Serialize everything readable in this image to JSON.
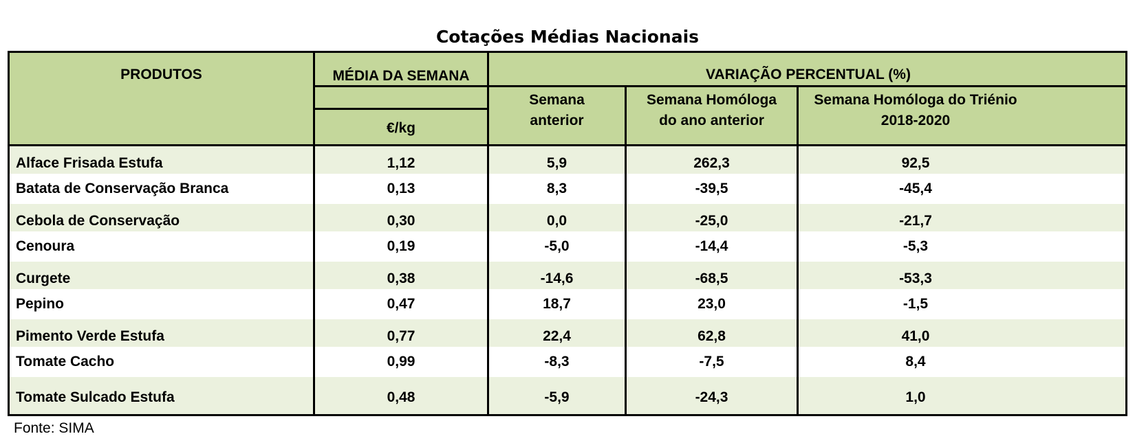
{
  "title": "Cotações Médias Nacionais",
  "header": {
    "produtos": "PRODUTOS",
    "media": "MÉDIA DA SEMANA",
    "unit": "€/kg",
    "variacao": "VARIAÇÃO PERCENTUAL (%)",
    "col1_line1": "Semana",
    "col1_line2": "anterior",
    "col2_line1": "Semana Homóloga",
    "col2_line2": "do ano anterior",
    "col3_line1": "Semana Homóloga do Triénio",
    "col3_line2": "2018-2020"
  },
  "rows": [
    {
      "product": "Alface Frisada Estufa",
      "media": "1,12",
      "anterior": "5,9",
      "homologa": "262,3",
      "trienio": "92,5"
    },
    {
      "product": "Batata de Conservação Branca",
      "media": "0,13",
      "anterior": "8,3",
      "homologa": "-39,5",
      "trienio": "-45,4"
    },
    {
      "product": "Cebola de Conservação",
      "media": "0,30",
      "anterior": "0,0",
      "homologa": "-25,0",
      "trienio": "-21,7"
    },
    {
      "product": "Cenoura",
      "media": "0,19",
      "anterior": "-5,0",
      "homologa": "-14,4",
      "trienio": "-5,3"
    },
    {
      "product": "Curgete",
      "media": "0,38",
      "anterior": "-14,6",
      "homologa": "-68,5",
      "trienio": "-53,3"
    },
    {
      "product": "Pepino",
      "media": "0,47",
      "anterior": "18,7",
      "homologa": "23,0",
      "trienio": "-1,5"
    },
    {
      "product": "Pimento Verde Estufa",
      "media": "0,77",
      "anterior": "22,4",
      "homologa": "62,8",
      "trienio": "41,0"
    },
    {
      "product": "Tomate Cacho",
      "media": "0,99",
      "anterior": "-8,3",
      "homologa": "-7,5",
      "trienio": "8,4"
    },
    {
      "product": "Tomate Sulcado Estufa",
      "media": "0,48",
      "anterior": "-5,9",
      "homologa": "-24,3",
      "trienio": "1,0"
    }
  ],
  "source": "Fonte: SIMA",
  "colors": {
    "header_bg": "#c4d79b",
    "band_bg": "#ebf1de",
    "border": "#000000"
  }
}
